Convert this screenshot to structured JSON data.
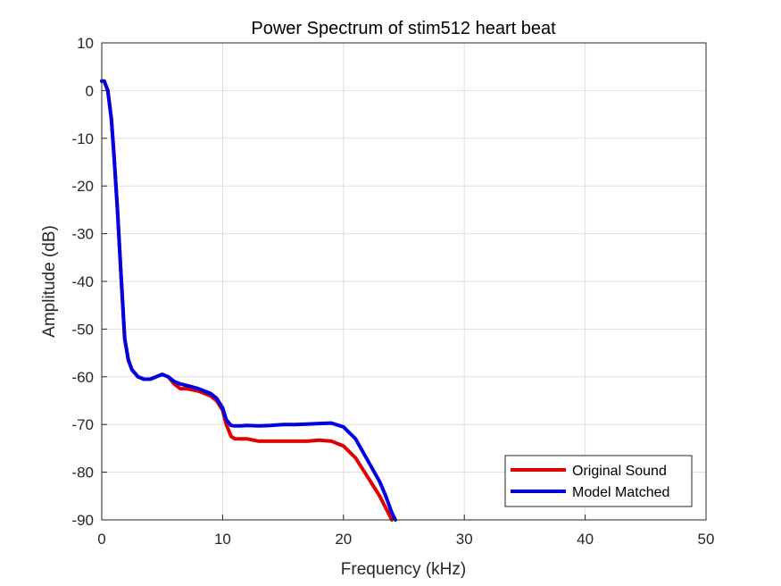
{
  "chart_data": {
    "type": "line",
    "title": "Power Spectrum of stim512 heart beat",
    "xlabel": "Frequency (kHz)",
    "ylabel": "Amplitude (dB)",
    "xlim": [
      0,
      50
    ],
    "ylim": [
      -90,
      10
    ],
    "xticks": [
      0,
      10,
      20,
      30,
      40,
      50
    ],
    "yticks": [
      10,
      0,
      -10,
      -20,
      -30,
      -40,
      -50,
      -60,
      -70,
      -80,
      -90
    ],
    "grid": true,
    "legend_position": "bottom-right",
    "series": [
      {
        "name": "Original Sound",
        "color": "#e00000",
        "x": [
          0,
          0.2,
          0.5,
          0.8,
          1.0,
          1.3,
          1.6,
          1.9,
          2.2,
          2.5,
          3.0,
          3.5,
          4.0,
          4.5,
          5.0,
          5.5,
          6.0,
          6.5,
          7.0,
          8.0,
          9.0,
          9.5,
          10.0,
          10.3,
          10.7,
          11.0,
          11.5,
          12.0,
          13.0,
          14.0,
          15.0,
          16.0,
          17.0,
          18.0,
          19.0,
          20.0,
          21.0,
          22.0,
          23.0,
          23.5,
          24.0
        ],
        "y": [
          2,
          2,
          0,
          -6,
          -13,
          -25,
          -39,
          -52,
          -56.5,
          -58.5,
          -60,
          -60.5,
          -60.5,
          -60,
          -59.5,
          -60,
          -61.5,
          -62.5,
          -62.5,
          -63,
          -64,
          -65,
          -67,
          -70,
          -72.5,
          -73,
          -73,
          -73,
          -73.5,
          -73.5,
          -73.5,
          -73.5,
          -73.5,
          -73.3,
          -73.5,
          -74.5,
          -77,
          -81,
          -85,
          -87.5,
          -90
        ]
      },
      {
        "name": "Model Matched",
        "color": "#0000e0",
        "x": [
          0,
          0.2,
          0.5,
          0.8,
          1.0,
          1.3,
          1.6,
          1.9,
          2.2,
          2.5,
          3.0,
          3.5,
          4.0,
          4.5,
          5.0,
          5.5,
          6.0,
          6.5,
          7.0,
          8.0,
          9.0,
          9.5,
          10.0,
          10.3,
          10.7,
          11.0,
          11.5,
          12.0,
          13.0,
          14.0,
          15.0,
          16.0,
          17.0,
          18.0,
          19.0,
          20.0,
          21.0,
          22.0,
          23.0,
          23.5,
          24.0,
          24.3
        ],
        "y": [
          2,
          2,
          0,
          -6,
          -13,
          -25,
          -39,
          -52,
          -56.5,
          -58.5,
          -60,
          -60.5,
          -60.5,
          -60,
          -59.5,
          -60,
          -61,
          -61.5,
          -61.8,
          -62.5,
          -63.5,
          -64.5,
          -66.5,
          -69,
          -70.2,
          -70.3,
          -70.3,
          -70.2,
          -70.3,
          -70.2,
          -70,
          -70,
          -69.9,
          -69.8,
          -69.7,
          -70.5,
          -73,
          -77.5,
          -82,
          -85,
          -88.5,
          -90
        ]
      }
    ]
  }
}
